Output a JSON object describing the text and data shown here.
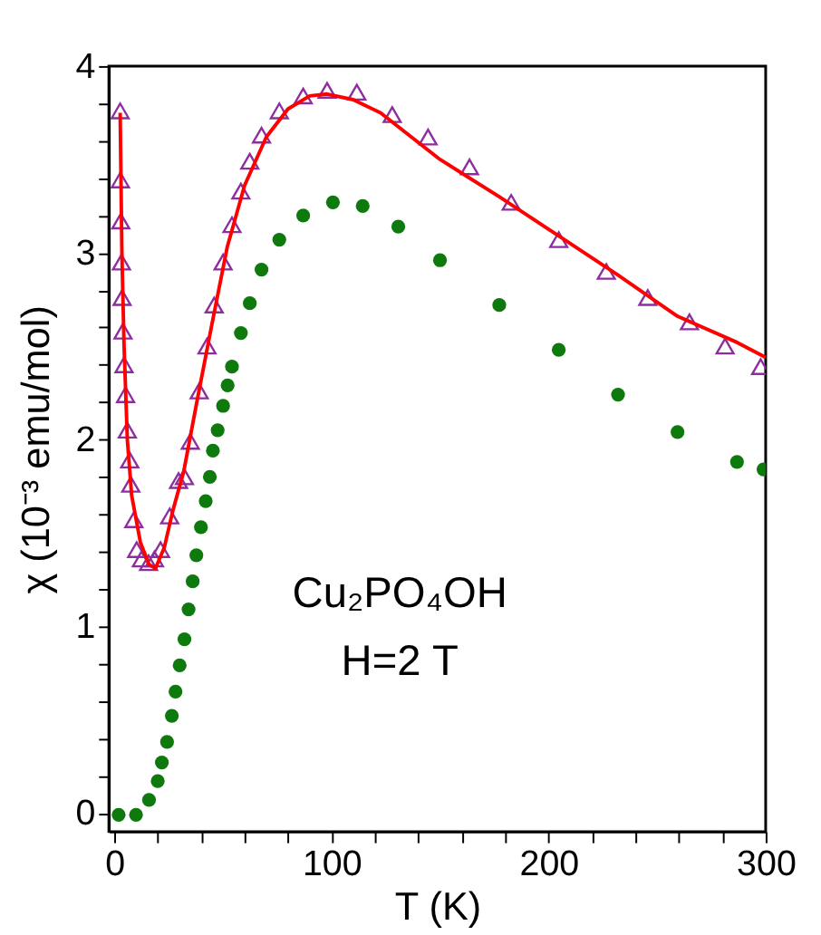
{
  "chart_data": {
    "type": "scatter",
    "xlabel": "T (K)",
    "ylabel": "χ (10⁻³ emu/mol)",
    "xlim": [
      -2.5,
      300
    ],
    "ylim": [
      -0.1,
      4
    ],
    "xticks": [
      0,
      {
        "value": 20,
        "label": null
      },
      {
        "value": 40,
        "label": null
      },
      {
        "value": 60,
        "label": null
      },
      {
        "value": 80,
        "label": null
      },
      100,
      {
        "value": 120,
        "label": null
      },
      {
        "value": 140,
        "label": null
      },
      {
        "value": 160,
        "label": null
      },
      {
        "value": 180,
        "label": null
      },
      200,
      {
        "value": 220,
        "label": null
      },
      {
        "value": 240,
        "label": null
      },
      {
        "value": 260,
        "label": null
      },
      {
        "value": 280,
        "label": null
      },
      300
    ],
    "yticks": [
      0,
      {
        "value": 0.2,
        "label": null
      },
      {
        "value": 0.4,
        "label": null
      },
      {
        "value": 0.6,
        "label": null
      },
      {
        "value": 0.8,
        "label": null
      },
      1,
      {
        "value": 1.2,
        "label": null
      },
      {
        "value": 1.4,
        "label": null
      },
      {
        "value": 1.6,
        "label": null
      },
      {
        "value": 1.8,
        "label": null
      },
      2,
      {
        "value": 2.2,
        "label": null
      },
      {
        "value": 2.4,
        "label": null
      },
      {
        "value": 2.6,
        "label": null
      },
      {
        "value": 2.8,
        "label": null
      },
      3,
      {
        "value": 3.2,
        "label": null
      },
      {
        "value": 3.4,
        "label": null
      },
      {
        "value": 3.6,
        "label": null
      },
      {
        "value": 3.8,
        "label": null
      },
      4
    ],
    "grid": false,
    "annotations": [
      "Cu₂PO₄OH",
      "H=2 T"
    ],
    "series": [
      {
        "marker": "triangle",
        "color": "#8e2da0",
        "x": [
          2.7,
          2.8,
          3.0,
          3.3,
          3.6,
          4.0,
          4.5,
          5.2,
          6.0,
          7.1,
          7.6,
          9.0,
          10.3,
          12.5,
          15.8,
          18.5,
          21.3,
          25.5,
          29.6,
          32.3,
          35.0,
          39.1,
          42.7,
          46.0,
          50.1,
          54.2,
          58.3,
          62.4,
          67.8,
          76.0,
          87.0,
          98.0,
          111.7,
          128.0,
          144.5,
          163.6,
          182.8,
          204.7,
          226.6,
          245.7,
          264.9,
          281.3,
          297.7
        ],
        "values": [
          3.76,
          3.39,
          3.17,
          2.95,
          2.76,
          2.58,
          2.4,
          2.24,
          2.05,
          1.89,
          1.76,
          1.57,
          1.41,
          1.36,
          1.34,
          1.36,
          1.41,
          1.59,
          1.78,
          1.8,
          1.99,
          2.26,
          2.5,
          2.72,
          2.95,
          3.15,
          3.33,
          3.49,
          3.63,
          3.76,
          3.84,
          3.87,
          3.86,
          3.74,
          3.62,
          3.46,
          3.27,
          3.07,
          2.9,
          2.76,
          2.63,
          2.5,
          2.39
        ]
      },
      {
        "type": "line",
        "marker": "none",
        "color": "#ff0000",
        "x": [
          2.7,
          3.5,
          4.5,
          6,
          8,
          12,
          16,
          19,
          23,
          27,
          32,
          38,
          45,
          52,
          60,
          70,
          80,
          90,
          98,
          110,
          122.6,
          150,
          177.3,
          204.7,
          232,
          259.4,
          286.8,
          300
        ],
        "values": [
          3.75,
          3.0,
          2.5,
          2.0,
          1.7,
          1.45,
          1.33,
          1.31,
          1.42,
          1.62,
          1.83,
          2.2,
          2.62,
          3.03,
          3.36,
          3.62,
          3.77,
          3.84,
          3.85,
          3.82,
          3.75,
          3.5,
          3.3,
          3.09,
          2.88,
          2.66,
          2.52,
          2.44
        ]
      },
      {
        "marker": "circle",
        "color": "#0e7a0e",
        "x": [
          2,
          10,
          16,
          20,
          21.9,
          24.3,
          26.5,
          28.2,
          30.1,
          32.3,
          34.2,
          36.1,
          37.8,
          39.9,
          42.1,
          44.0,
          45.4,
          47.6,
          50.1,
          52.2,
          54.2,
          58.3,
          62.4,
          67.8,
          76.0,
          87.0,
          100.7,
          114.4,
          130.8,
          150,
          177.3,
          204.7,
          232,
          259.4,
          286.8,
          299
        ],
        "values": [
          -0.01,
          -0.01,
          0.07,
          0.17,
          0.27,
          0.38,
          0.52,
          0.65,
          0.79,
          0.93,
          1.09,
          1.24,
          1.38,
          1.53,
          1.67,
          1.8,
          1.94,
          2.05,
          2.18,
          2.29,
          2.39,
          2.57,
          2.73,
          2.91,
          3.07,
          3.2,
          3.27,
          3.25,
          3.14,
          2.96,
          2.72,
          2.48,
          2.24,
          2.04,
          1.88,
          1.84
        ]
      }
    ]
  }
}
